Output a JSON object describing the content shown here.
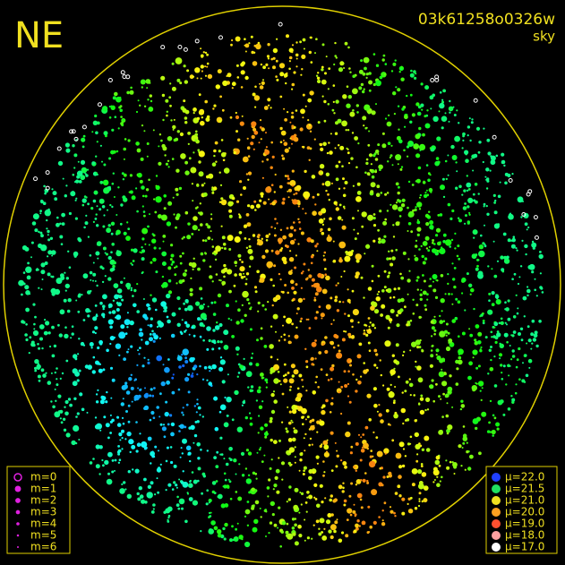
{
  "corner_label": "NE",
  "header": {
    "id": "03k61258o0326w",
    "subtitle": "sky"
  },
  "magnitude_legend": [
    "m=0",
    "m=1",
    "m=2",
    "m=3",
    "m=4",
    "m=5",
    "m=6"
  ],
  "brightness_legend": [
    {
      "label": "μ=22.0",
      "color": "#2040ff"
    },
    {
      "label": "μ=21.5",
      "color": "#20e060"
    },
    {
      "label": "μ=21.0",
      "color": "#f0e020"
    },
    {
      "label": "μ=20.0",
      "color": "#ffa020"
    },
    {
      "label": "μ=19.0",
      "color": "#ff5030"
    },
    {
      "label": "μ=18.0",
      "color": "#ffa0a0"
    },
    {
      "label": "μ=17.0",
      "color": "#ffffff"
    }
  ]
}
